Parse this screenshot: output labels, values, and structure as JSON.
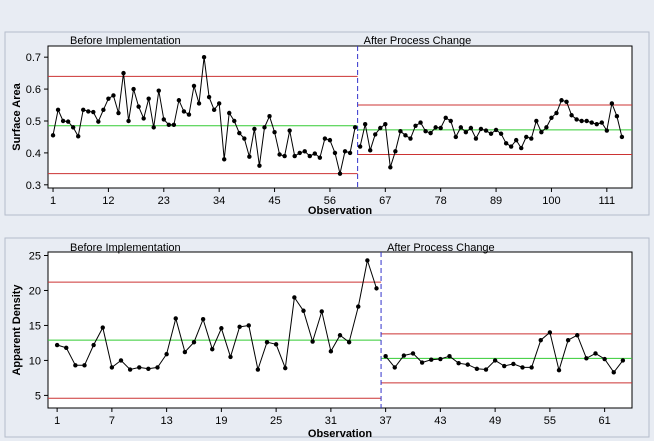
{
  "colors": {
    "background": "#e8ecf3",
    "plot_bg": "#ffffff",
    "control_limit": "#cc3333",
    "center_line": "#33cc33",
    "divider": "#3333cc",
    "data": "#000000"
  },
  "chart_data": [
    {
      "type": "line",
      "subtype": "i-chart",
      "title": "",
      "xlabel": "Observation",
      "ylabel": "Surface Area",
      "xlim": [
        0,
        116
      ],
      "ylim": [
        0.29,
        0.735
      ],
      "xticks": [
        1,
        12,
        23,
        34,
        45,
        56,
        67,
        78,
        89,
        100,
        111
      ],
      "yticks": [
        "0.3",
        "0.4",
        "0.5",
        "0.6",
        "0.7"
      ],
      "grid": false,
      "stage_break": 61.5,
      "stages": [
        {
          "label": "Before Implementation",
          "from": 1,
          "to": 61,
          "ucl": 0.64,
          "cl": 0.485,
          "lcl": 0.335
        },
        {
          "label": "After Process Change",
          "from": 62,
          "to": 114,
          "ucl": 0.55,
          "cl": 0.472,
          "lcl": 0.395
        }
      ],
      "values": [
        0.455,
        0.535,
        0.5,
        0.498,
        0.48,
        0.452,
        0.535,
        0.53,
        0.528,
        0.498,
        0.535,
        0.57,
        0.58,
        0.525,
        0.65,
        0.5,
        0.6,
        0.545,
        0.508,
        0.57,
        0.48,
        0.595,
        0.505,
        0.488,
        0.488,
        0.565,
        0.53,
        0.52,
        0.61,
        0.555,
        0.7,
        0.575,
        0.535,
        0.555,
        0.38,
        0.525,
        0.5,
        0.462,
        0.445,
        0.388,
        0.475,
        0.36,
        0.48,
        0.515,
        0.465,
        0.395,
        0.39,
        0.47,
        0.39,
        0.4,
        0.405,
        0.39,
        0.398,
        0.385,
        0.445,
        0.44,
        0.4,
        0.335,
        0.405,
        0.4,
        0.48,
        0.42,
        0.49,
        0.408,
        0.458,
        0.478,
        0.49,
        0.355,
        0.405,
        0.468,
        0.455,
        0.445,
        0.485,
        0.495,
        0.468,
        0.462,
        0.48,
        0.478,
        0.51,
        0.5,
        0.45,
        0.48,
        0.465,
        0.478,
        0.445,
        0.475,
        0.47,
        0.46,
        0.472,
        0.46,
        0.43,
        0.42,
        0.44,
        0.415,
        0.45,
        0.445,
        0.5,
        0.465,
        0.48,
        0.51,
        0.525,
        0.565,
        0.56,
        0.518,
        0.505,
        0.5,
        0.5,
        0.495,
        0.49,
        0.495,
        0.47,
        0.555,
        0.515,
        0.45
      ]
    },
    {
      "type": "line",
      "subtype": "i-chart",
      "title": "",
      "xlabel": "Observation",
      "ylabel": "Apparent Density",
      "xlim": [
        0,
        64
      ],
      "ylim": [
        3.2,
        25.5
      ],
      "xticks": [
        1,
        7,
        13,
        19,
        25,
        31,
        37,
        43,
        49,
        55,
        61
      ],
      "yticks": [
        "5",
        "10",
        "15",
        "20",
        "25"
      ],
      "grid": false,
      "stage_break": 36.5,
      "stages": [
        {
          "label": "Before Implementation",
          "from": 1,
          "to": 36,
          "ucl": 21.2,
          "cl": 12.9,
          "lcl": 4.6
        },
        {
          "label": "After Process Change",
          "from": 37,
          "to": 63,
          "ucl": 13.8,
          "cl": 10.3,
          "lcl": 6.8
        }
      ],
      "values": [
        12.2,
        11.8,
        9.3,
        9.3,
        12.2,
        14.7,
        9.0,
        10.0,
        8.7,
        9.0,
        8.8,
        9.0,
        10.9,
        16.0,
        11.2,
        12.6,
        15.9,
        11.6,
        14.6,
        10.5,
        14.8,
        15.0,
        8.7,
        12.6,
        12.3,
        8.9,
        19.0,
        17.1,
        12.7,
        17.0,
        11.3,
        13.6,
        12.6,
        17.7,
        24.3,
        20.3,
        10.6,
        9.0,
        10.7,
        11.0,
        9.7,
        10.1,
        10.2,
        10.6,
        9.6,
        9.4,
        8.8,
        8.7,
        10.0,
        9.2,
        9.5,
        9.0,
        9.0,
        12.9,
        14.0,
        8.6,
        12.9,
        13.6,
        10.3,
        11.0,
        10.2,
        8.3,
        10.0
      ]
    }
  ]
}
